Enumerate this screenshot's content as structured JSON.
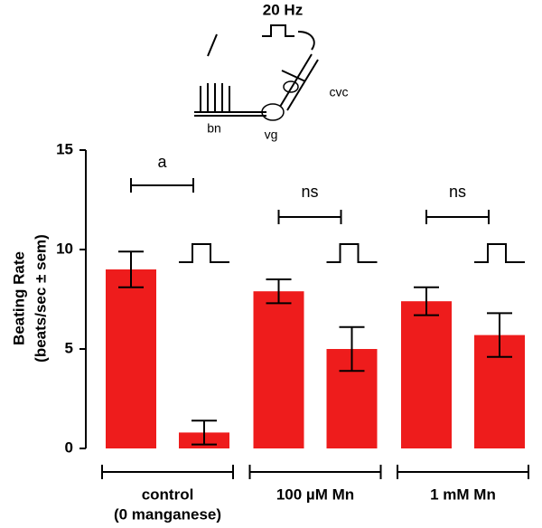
{
  "chart_data": {
    "type": "bar",
    "y_label": [
      "Beating Rate",
      "(beats/sec ± sem)"
    ],
    "categories": [
      null,
      null,
      null,
      null,
      null,
      null
    ],
    "groups": [
      [
        "control",
        "(0 manganese)"
      ],
      [
        "100 µM Mn"
      ],
      [
        "1 mM Mn"
      ]
    ],
    "significance": [
      "a",
      "ns",
      "ns"
    ],
    "series": [
      {
        "color": "#ee1c1c",
        "values": [
          9.0,
          0.8,
          7.9,
          5.0,
          7.4,
          5.7
        ],
        "errors": [
          0.9,
          0.6,
          0.6,
          1.1,
          0.7,
          1.1
        ]
      }
    ],
    "ylim": [
      0,
      15
    ],
    "yticks": [
      0,
      5,
      10,
      15
    ],
    "grid": false
  },
  "diagram": {
    "labels": [
      "20 Hz",
      "cvc",
      "bn",
      "vg"
    ]
  }
}
